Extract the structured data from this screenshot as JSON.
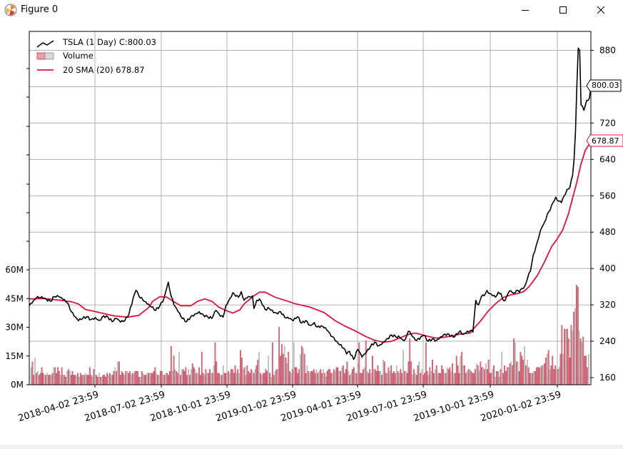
{
  "window": {
    "title": "Figure 0"
  },
  "legend": {
    "price": "TSLA (1 Day) C:800.03",
    "volume": "Volume",
    "sma": "20 SMA (20) 678.87"
  },
  "markers": {
    "close": "800.03",
    "sma": "678.87"
  },
  "colors": {
    "price": "#000000",
    "sma": "#dc143c",
    "vol_up": "#c0394f",
    "vol_down": "#a9a9a9",
    "grid": "#b0b0b0"
  },
  "chart_data": {
    "type": "line",
    "x_ticks": [
      "2018-04-02 23:59",
      "2018-07-02 23:59",
      "2018-10-01 23:59",
      "2019-01-02 23:59",
      "2019-04-01 23:59",
      "2019-07-01 23:59",
      "2019-10-01 23:59",
      "2020-01-02 23:59"
    ],
    "price_axis": {
      "ticks": [
        160,
        240,
        320,
        400,
        480,
        560,
        640,
        720,
        800,
        880
      ],
      "tick_labels": [
        "160",
        "240",
        "320",
        "400",
        "480",
        "560",
        "640",
        "720",
        "800",
        "880"
      ],
      "range": [
        146,
        912
      ]
    },
    "volume_axis": {
      "ticks": [
        0,
        15,
        30,
        45,
        60
      ],
      "tick_labels": [
        "0M",
        "15M",
        "30M",
        "45M",
        "60M"
      ],
      "unit": "M",
      "range": [
        0,
        60
      ]
    },
    "grid": true,
    "legend_position": "top-left",
    "price_keypoints": [
      [
        0,
        318
      ],
      [
        2,
        324
      ],
      [
        5,
        335
      ],
      [
        9,
        338
      ],
      [
        12,
        333
      ],
      [
        15,
        328
      ],
      [
        18,
        338
      ],
      [
        21,
        338
      ],
      [
        24,
        332
      ],
      [
        27,
        325
      ],
      [
        30,
        305
      ],
      [
        32,
        295
      ],
      [
        35,
        285
      ],
      [
        38,
        290
      ],
      [
        41,
        294
      ],
      [
        44,
        288
      ],
      [
        47,
        292
      ],
      [
        50,
        286
      ],
      [
        53,
        296
      ],
      [
        56,
        293
      ],
      [
        59,
        283
      ],
      [
        62,
        290
      ],
      [
        65,
        282
      ],
      [
        68,
        285
      ],
      [
        71,
        300
      ],
      [
        74,
        335
      ],
      [
        76,
        352
      ],
      [
        78,
        340
      ],
      [
        81,
        330
      ],
      [
        84,
        322
      ],
      [
        87,
        315
      ],
      [
        90,
        308
      ],
      [
        93,
        318
      ],
      [
        96,
        335
      ],
      [
        98,
        358
      ],
      [
        99,
        370
      ],
      [
        101,
        340
      ],
      [
        103,
        320
      ],
      [
        106,
        305
      ],
      [
        109,
        290
      ],
      [
        112,
        283
      ],
      [
        115,
        294
      ],
      [
        118,
        300
      ],
      [
        121,
        305
      ],
      [
        124,
        298
      ],
      [
        127,
        294
      ],
      [
        130,
        290
      ],
      [
        133,
        308
      ],
      [
        136,
        295
      ],
      [
        138,
        293
      ],
      [
        140,
        318
      ],
      [
        143,
        335
      ],
      [
        145,
        347
      ],
      [
        147,
        339
      ],
      [
        149,
        337
      ],
      [
        151,
        349
      ],
      [
        153,
        330
      ],
      [
        155,
        335
      ],
      [
        157,
        338
      ],
      [
        159,
        340
      ],
      [
        160,
        312
      ],
      [
        162,
        330
      ],
      [
        164,
        333
      ],
      [
        166,
        320
      ],
      [
        168,
        310
      ],
      [
        171,
        312
      ],
      [
        174,
        303
      ],
      [
        177,
        300
      ],
      [
        179,
        305
      ],
      [
        182,
        292
      ],
      [
        185,
        290
      ],
      [
        188,
        285
      ],
      [
        191,
        294
      ],
      [
        194,
        280
      ],
      [
        197,
        286
      ],
      [
        200,
        275
      ],
      [
        203,
        281
      ],
      [
        205,
        271
      ],
      [
        208,
        274
      ],
      [
        211,
        270
      ],
      [
        214,
        258
      ],
      [
        216,
        250
      ],
      [
        219,
        240
      ],
      [
        221,
        232
      ],
      [
        224,
        225
      ],
      [
        226,
        212
      ],
      [
        228,
        218
      ],
      [
        231,
        200
      ],
      [
        234,
        222
      ],
      [
        237,
        205
      ],
      [
        240,
        215
      ],
      [
        243,
        228
      ],
      [
        246,
        238
      ],
      [
        249,
        230
      ],
      [
        252,
        238
      ],
      [
        255,
        246
      ],
      [
        258,
        254
      ],
      [
        261,
        250
      ],
      [
        264,
        248
      ],
      [
        266,
        243
      ],
      [
        268,
        245
      ],
      [
        270,
        262
      ],
      [
        272,
        255
      ],
      [
        274,
        248
      ],
      [
        276,
        242
      ],
      [
        279,
        250
      ],
      [
        281,
        253
      ],
      [
        284,
        240
      ],
      [
        287,
        245
      ],
      [
        290,
        242
      ],
      [
        293,
        250
      ],
      [
        296,
        256
      ],
      [
        299,
        255
      ],
      [
        302,
        249
      ],
      [
        305,
        256
      ],
      [
        307,
        263
      ],
      [
        309,
        255
      ],
      [
        311,
        258
      ],
      [
        314,
        263
      ],
      [
        316,
        260
      ],
      [
        318,
        330
      ],
      [
        320,
        320
      ],
      [
        322,
        338
      ],
      [
        324,
        340
      ],
      [
        326,
        352
      ],
      [
        328,
        345
      ],
      [
        330,
        340
      ],
      [
        332,
        337
      ],
      [
        334,
        348
      ],
      [
        336,
        345
      ],
      [
        337,
        334
      ],
      [
        339,
        330
      ],
      [
        341,
        345
      ],
      [
        343,
        351
      ],
      [
        345,
        346
      ],
      [
        347,
        352
      ],
      [
        349,
        348
      ],
      [
        351,
        356
      ],
      [
        353,
        362
      ],
      [
        355,
        380
      ],
      [
        357,
        395
      ],
      [
        359,
        430
      ],
      [
        361,
        450
      ],
      [
        363,
        470
      ],
      [
        365,
        490
      ],
      [
        367,
        502
      ],
      [
        369,
        520
      ],
      [
        371,
        528
      ],
      [
        373,
        545
      ],
      [
        375,
        557
      ],
      [
        377,
        548
      ],
      [
        379,
        545
      ],
      [
        381,
        560
      ],
      [
        383,
        574
      ],
      [
        385,
        578
      ],
      [
        387,
        605
      ],
      [
        388,
        640
      ],
      [
        389,
        700
      ],
      [
        390,
        800
      ],
      [
        391,
        885
      ],
      [
        392,
        880
      ],
      [
        393,
        760
      ],
      [
        395,
        748
      ],
      [
        397,
        770
      ],
      [
        399,
        775
      ],
      [
        400,
        800
      ]
    ],
    "sma_keypoints": [
      [
        0,
        333
      ],
      [
        10,
        334
      ],
      [
        20,
        331
      ],
      [
        30,
        327
      ],
      [
        35,
        322
      ],
      [
        40,
        310
      ],
      [
        50,
        303
      ],
      [
        60,
        296
      ],
      [
        70,
        293
      ],
      [
        78,
        297
      ],
      [
        85,
        314
      ],
      [
        88,
        328
      ],
      [
        93,
        338
      ],
      [
        98,
        337
      ],
      [
        103,
        327
      ],
      [
        108,
        318
      ],
      [
        115,
        318
      ],
      [
        120,
        328
      ],
      [
        125,
        333
      ],
      [
        130,
        328
      ],
      [
        135,
        315
      ],
      [
        140,
        308
      ],
      [
        145,
        302
      ],
      [
        150,
        309
      ],
      [
        153,
        322
      ],
      [
        160,
        340
      ],
      [
        164,
        348
      ],
      [
        168,
        348
      ],
      [
        175,
        337
      ],
      [
        182,
        330
      ],
      [
        190,
        322
      ],
      [
        200,
        315
      ],
      [
        210,
        303
      ],
      [
        218,
        285
      ],
      [
        225,
        273
      ],
      [
        232,
        263
      ],
      [
        240,
        250
      ],
      [
        246,
        242
      ],
      [
        252,
        238
      ],
      [
        258,
        240
      ],
      [
        263,
        246
      ],
      [
        270,
        255
      ],
      [
        275,
        258
      ],
      [
        280,
        254
      ],
      [
        285,
        250
      ],
      [
        290,
        247
      ],
      [
        296,
        249
      ],
      [
        302,
        252
      ],
      [
        307,
        256
      ],
      [
        314,
        258
      ],
      [
        316,
        266
      ],
      [
        321,
        283
      ],
      [
        327,
        307
      ],
      [
        333,
        325
      ],
      [
        338,
        337
      ],
      [
        344,
        343
      ],
      [
        348,
        345
      ],
      [
        352,
        349
      ],
      [
        356,
        360
      ],
      [
        362,
        385
      ],
      [
        367,
        415
      ],
      [
        372,
        448
      ],
      [
        376,
        465
      ],
      [
        380,
        485
      ],
      [
        384,
        520
      ],
      [
        387,
        555
      ],
      [
        390,
        590
      ],
      [
        393,
        630
      ],
      [
        396,
        660
      ],
      [
        400,
        679
      ]
    ],
    "volume_series": [
      9,
      12,
      5,
      14,
      6,
      7,
      5,
      6,
      9,
      6,
      5,
      5,
      6,
      5,
      5,
      5,
      6,
      9,
      9,
      6,
      9,
      7,
      5,
      9,
      5,
      5,
      4,
      7,
      8,
      7,
      5,
      7,
      5,
      5,
      5,
      6,
      4,
      6,
      5,
      5,
      5,
      6,
      5,
      5,
      9,
      5,
      4,
      8,
      5,
      5,
      4,
      6,
      4,
      4,
      5,
      5,
      4,
      6,
      5,
      6,
      5,
      5,
      7,
      9,
      7,
      12,
      12,
      5,
      7,
      6,
      5,
      7,
      7,
      6,
      7,
      5,
      6,
      6,
      7,
      7,
      7,
      4,
      4,
      7,
      6,
      5,
      5,
      6,
      6,
      6,
      6,
      6,
      7,
      9,
      6,
      5,
      5,
      7,
      7,
      5,
      5,
      6,
      6,
      5,
      7,
      20,
      7,
      15,
      8,
      7,
      6,
      17,
      5,
      8,
      8,
      7,
      9,
      5,
      8,
      5,
      8,
      11,
      9,
      8,
      6,
      6,
      9,
      5,
      17,
      6,
      5,
      8,
      6,
      6,
      8,
      6,
      6,
      10,
      22,
      12,
      6,
      6,
      5,
      5,
      10,
      6,
      6,
      6,
      7,
      6,
      8,
      8,
      6,
      10,
      6,
      8,
      6,
      18,
      14,
      8,
      9,
      5,
      10,
      7,
      6,
      8,
      7,
      6,
      8,
      10,
      13,
      17,
      6,
      5,
      6,
      6,
      8,
      7,
      15,
      6,
      4,
      22,
      5,
      7,
      8,
      8,
      30,
      15,
      21,
      16,
      20,
      14,
      11,
      17,
      7,
      6,
      8,
      22,
      9,
      9,
      6,
      8,
      16,
      20,
      19,
      16,
      6,
      10,
      7,
      6,
      7,
      7,
      8,
      6,
      8,
      6,
      7,
      8,
      6,
      8,
      6,
      4,
      7,
      8,
      8,
      6,
      6,
      8,
      7,
      9,
      9,
      7,
      7,
      9,
      10,
      6,
      8,
      12,
      7,
      5,
      6,
      8,
      9,
      6,
      6,
      11,
      22,
      6,
      6,
      8,
      9,
      23,
      7,
      6,
      8,
      6,
      15,
      8,
      8,
      7,
      10,
      7,
      7,
      5,
      13,
      12,
      6,
      6,
      9,
      7,
      10,
      6,
      7,
      6,
      10,
      7,
      6,
      8,
      6,
      18,
      7,
      7,
      6,
      12,
      24,
      12,
      5,
      8,
      6,
      5,
      10,
      12,
      6,
      8,
      5,
      6,
      22,
      7,
      5,
      9,
      7,
      13,
      6,
      8,
      10,
      6,
      6,
      6,
      10,
      8,
      6,
      6,
      9,
      8,
      9,
      7,
      11,
      6,
      6,
      15,
      10,
      6,
      15,
      17,
      10,
      10,
      6,
      7,
      8,
      8,
      7,
      6,
      6,
      8,
      11,
      10,
      7,
      12,
      9,
      9,
      8,
      11,
      8,
      13,
      6,
      6,
      8,
      10,
      4,
      7,
      7,
      4,
      8,
      17,
      6,
      10,
      7,
      9,
      9,
      11,
      12,
      10,
      24,
      22,
      12,
      12,
      7,
      17,
      15,
      13,
      20,
      10,
      13,
      9,
      6,
      6,
      6,
      7,
      7,
      9,
      9,
      9,
      9,
      10,
      10,
      11,
      14,
      16,
      18,
      8,
      10,
      15,
      8,
      10,
      8,
      8,
      9,
      16,
      31,
      16,
      29,
      29,
      29,
      24,
      14,
      31,
      28,
      38,
      40,
      52,
      51,
      28,
      24,
      22,
      25,
      15,
      15,
      9,
      16
    ],
    "volume_up_pattern": "every-other-with-runs"
  }
}
